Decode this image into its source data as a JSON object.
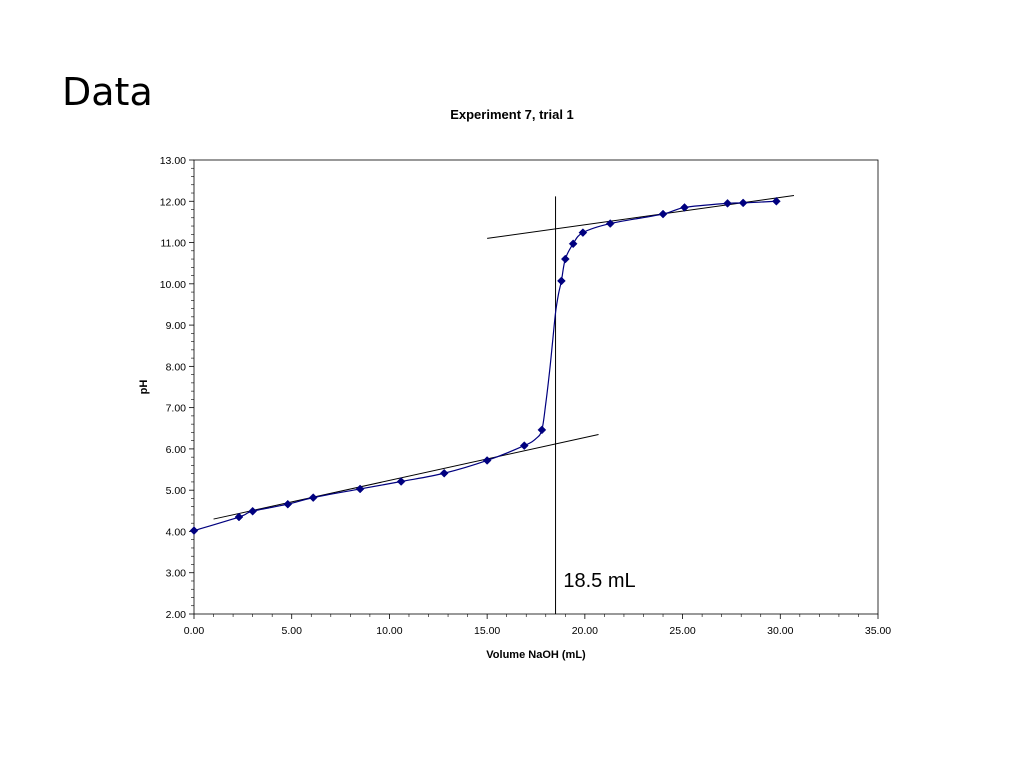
{
  "slide": {
    "title": "Data"
  },
  "chart_data": {
    "type": "scatter",
    "title": "Experiment 7, trial 1",
    "xlabel": "Volume NaOH (mL)",
    "ylabel": "pH",
    "xlim": [
      0,
      35
    ],
    "ylim": [
      2,
      13
    ],
    "x_ticks": [
      0,
      5,
      10,
      15,
      20,
      25,
      30,
      35
    ],
    "y_ticks": [
      2,
      3,
      4,
      5,
      6,
      7,
      8,
      9,
      10,
      11,
      12,
      13
    ],
    "x_tick_labels": [
      "0.00",
      "5.00",
      "10.00",
      "15.00",
      "20.00",
      "25.00",
      "30.00",
      "35.00"
    ],
    "y_tick_labels": [
      "2.00",
      "3.00",
      "4.00",
      "5.00",
      "6.00",
      "7.00",
      "8.00",
      "9.00",
      "10.00",
      "11.00",
      "12.00",
      "13.00"
    ],
    "grid": false,
    "series": [
      {
        "marker": "diamond",
        "color": "#00007f",
        "points": [
          [
            0.0,
            4.02
          ],
          [
            2.3,
            4.35
          ],
          [
            3.0,
            4.49
          ],
          [
            4.8,
            4.66
          ],
          [
            6.1,
            4.82
          ],
          [
            8.5,
            5.03
          ],
          [
            10.6,
            5.21
          ],
          [
            12.8,
            5.41
          ],
          [
            15.0,
            5.72
          ],
          [
            16.9,
            6.08
          ],
          [
            17.8,
            6.46
          ],
          [
            18.8,
            10.07
          ],
          [
            19.0,
            10.6
          ],
          [
            19.4,
            10.97
          ],
          [
            19.9,
            11.24
          ],
          [
            21.3,
            11.46
          ],
          [
            24.0,
            11.69
          ],
          [
            25.1,
            11.85
          ],
          [
            27.3,
            11.95
          ],
          [
            28.1,
            11.96
          ],
          [
            29.8,
            12.0
          ]
        ],
        "curve": [
          [
            0.0,
            4.02
          ],
          [
            2.3,
            4.35
          ],
          [
            3.0,
            4.49
          ],
          [
            4.8,
            4.66
          ],
          [
            6.1,
            4.82
          ],
          [
            8.5,
            5.03
          ],
          [
            10.6,
            5.21
          ],
          [
            12.8,
            5.41
          ],
          [
            15.0,
            5.72
          ],
          [
            16.9,
            6.08
          ],
          [
            17.5,
            6.25
          ],
          [
            17.8,
            6.46
          ],
          [
            18.0,
            7.1
          ],
          [
            18.2,
            7.9
          ],
          [
            18.35,
            8.6
          ],
          [
            18.5,
            9.3
          ],
          [
            18.65,
            9.75
          ],
          [
            18.8,
            10.07
          ],
          [
            19.0,
            10.6
          ],
          [
            19.4,
            10.97
          ],
          [
            19.9,
            11.24
          ],
          [
            21.3,
            11.46
          ],
          [
            24.0,
            11.69
          ],
          [
            25.1,
            11.85
          ],
          [
            27.3,
            11.95
          ],
          [
            28.1,
            11.96
          ],
          [
            29.8,
            12.0
          ]
        ]
      }
    ],
    "tangent_lines": [
      {
        "x1": 1.0,
        "y1": 4.3,
        "x2": 20.7,
        "y2": 6.35,
        "color": "#000000"
      },
      {
        "x1": 15.0,
        "y1": 11.1,
        "x2": 30.7,
        "y2": 12.14,
        "color": "#000000"
      }
    ],
    "vertical_line": {
      "x": 18.5,
      "y_from": 2,
      "y_to": 12.12,
      "color": "#000000"
    },
    "annotation": {
      "text": "18.5 mL",
      "x": 18.9,
      "y": 2.65
    }
  }
}
